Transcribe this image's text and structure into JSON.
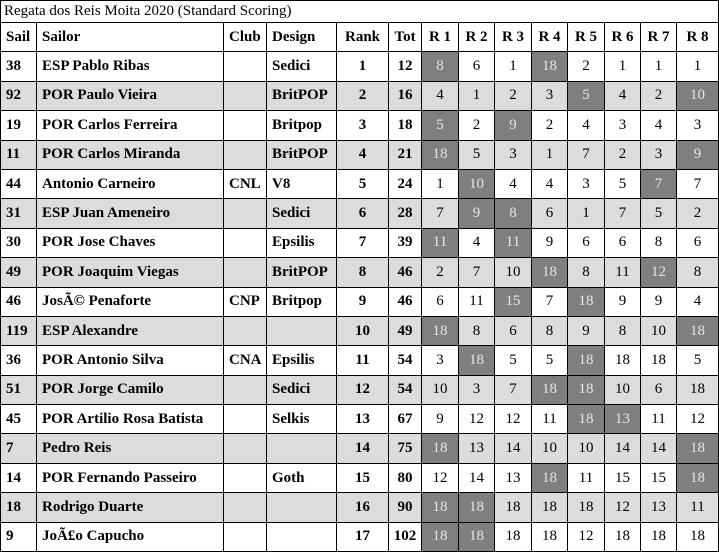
{
  "title": "Regata dos Reis Moita 2020 (Standard Scoring)",
  "columns": [
    "Sail",
    "Sailor",
    "Club",
    "Design",
    "Rank",
    "Tot",
    "R 1",
    "R 2",
    "R 3",
    "R 4",
    "R 5",
    "R 6",
    "R 7",
    "R 8"
  ],
  "colors": {
    "discard_bg": "#7f7f7f",
    "alt_row_bg": "#dcdcdc"
  },
  "rows": [
    {
      "sail": "38",
      "sailor": "ESP Pablo Ribas",
      "club": "",
      "design": "Sedici",
      "rank": "1",
      "tot": "12",
      "races": [
        "8",
        "6",
        "1",
        "18",
        "2",
        "1",
        "1",
        "1"
      ],
      "discards": [
        0,
        3
      ]
    },
    {
      "sail": "92",
      "sailor": "POR Paulo Vieira",
      "club": "",
      "design": "BritPOP",
      "rank": "2",
      "tot": "16",
      "races": [
        "4",
        "1",
        "2",
        "3",
        "5",
        "4",
        "2",
        "10"
      ],
      "discards": [
        4,
        7
      ]
    },
    {
      "sail": "19",
      "sailor": "POR Carlos Ferreira",
      "club": "",
      "design": "Britpop",
      "rank": "3",
      "tot": "18",
      "races": [
        "5",
        "2",
        "9",
        "2",
        "4",
        "3",
        "4",
        "3"
      ],
      "discards": [
        0,
        2
      ]
    },
    {
      "sail": "11",
      "sailor": "POR Carlos Miranda",
      "club": "",
      "design": "BritPOP",
      "rank": "4",
      "tot": "21",
      "races": [
        "18",
        "5",
        "3",
        "1",
        "7",
        "2",
        "3",
        "9"
      ],
      "discards": [
        0,
        7
      ]
    },
    {
      "sail": "44",
      "sailor": "Antonio Carneiro",
      "club": "CNL",
      "design": "V8",
      "rank": "5",
      "tot": "24",
      "races": [
        "1",
        "10",
        "4",
        "4",
        "3",
        "5",
        "7",
        "7"
      ],
      "discards": [
        1,
        6
      ]
    },
    {
      "sail": "31",
      "sailor": "ESP Juan Ameneiro",
      "club": "",
      "design": "Sedici",
      "rank": "6",
      "tot": "28",
      "races": [
        "7",
        "9",
        "8",
        "6",
        "1",
        "7",
        "5",
        "2"
      ],
      "discards": [
        1,
        2
      ]
    },
    {
      "sail": "30",
      "sailor": "POR Jose Chaves",
      "club": "",
      "design": "Epsilis",
      "rank": "7",
      "tot": "39",
      "races": [
        "11",
        "4",
        "11",
        "9",
        "6",
        "6",
        "8",
        "6"
      ],
      "discards": [
        0,
        2
      ]
    },
    {
      "sail": "49",
      "sailor": "POR Joaquim Viegas",
      "club": "",
      "design": "BritPOP",
      "rank": "8",
      "tot": "46",
      "races": [
        "2",
        "7",
        "10",
        "18",
        "8",
        "11",
        "12",
        "8"
      ],
      "discards": [
        3,
        6
      ]
    },
    {
      "sail": "46",
      "sailor": "JosÃ© Penaforte",
      "club": "CNP",
      "design": "Britpop",
      "rank": "9",
      "tot": "46",
      "races": [
        "6",
        "11",
        "15",
        "7",
        "18",
        "9",
        "9",
        "4"
      ],
      "discards": [
        2,
        4
      ]
    },
    {
      "sail": "119",
      "sailor": "ESP Alexandre",
      "club": "",
      "design": "",
      "rank": "10",
      "tot": "49",
      "races": [
        "18",
        "8",
        "6",
        "8",
        "9",
        "8",
        "10",
        "18"
      ],
      "discards": [
        0,
        7
      ]
    },
    {
      "sail": "36",
      "sailor": "POR Antonio Silva",
      "club": "CNA",
      "design": "Epsilis",
      "rank": "11",
      "tot": "54",
      "races": [
        "3",
        "18",
        "5",
        "5",
        "18",
        "18",
        "18",
        "5"
      ],
      "discards": [
        1,
        4
      ]
    },
    {
      "sail": "51",
      "sailor": "POR Jorge Camilo",
      "club": "",
      "design": "Sedici",
      "rank": "12",
      "tot": "54",
      "races": [
        "10",
        "3",
        "7",
        "18",
        "18",
        "10",
        "6",
        "18"
      ],
      "discards": [
        3,
        4
      ]
    },
    {
      "sail": "45",
      "sailor": "POR Artilio Rosa Batista",
      "club": "",
      "design": "Selkis",
      "rank": "13",
      "tot": "67",
      "races": [
        "9",
        "12",
        "12",
        "11",
        "18",
        "13",
        "11",
        "12"
      ],
      "discards": [
        4,
        5
      ]
    },
    {
      "sail": "7",
      "sailor": "Pedro Reis",
      "club": "",
      "design": "",
      "rank": "14",
      "tot": "75",
      "races": [
        "18",
        "13",
        "14",
        "10",
        "10",
        "14",
        "14",
        "18"
      ],
      "discards": [
        0,
        7
      ]
    },
    {
      "sail": "14",
      "sailor": "POR Fernando Passeiro",
      "club": "",
      "design": "Goth",
      "rank": "15",
      "tot": "80",
      "races": [
        "12",
        "14",
        "13",
        "18",
        "11",
        "15",
        "15",
        "18"
      ],
      "discards": [
        3,
        7
      ]
    },
    {
      "sail": "18",
      "sailor": "Rodrigo Duarte",
      "club": "",
      "design": "",
      "rank": "16",
      "tot": "90",
      "races": [
        "18",
        "18",
        "18",
        "18",
        "18",
        "12",
        "13",
        "11"
      ],
      "discards": [
        0,
        1
      ]
    },
    {
      "sail": "9",
      "sailor": "JoÃ£o Capucho",
      "club": "",
      "design": "",
      "rank": "17",
      "tot": "102",
      "races": [
        "18",
        "18",
        "18",
        "18",
        "12",
        "18",
        "18",
        "18"
      ],
      "discards": [
        0,
        1
      ]
    }
  ]
}
